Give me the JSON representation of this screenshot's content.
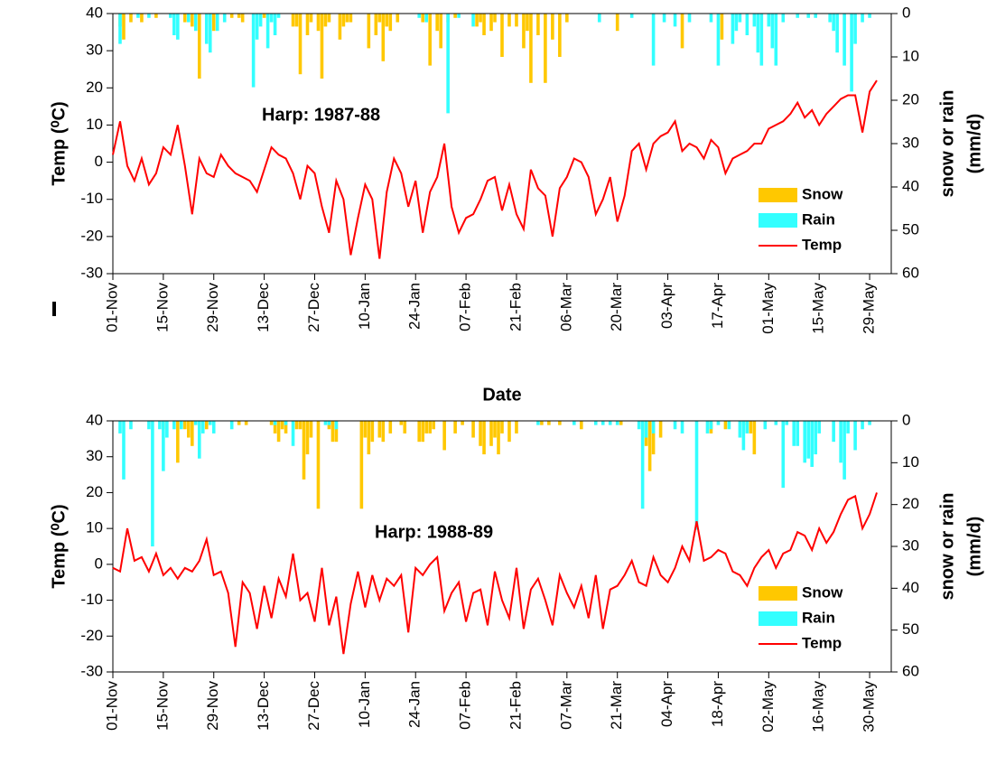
{
  "chart_data": [
    {
      "type": "combo",
      "annotation": "Harp: 1987-88",
      "xlabel": "Date",
      "ylabel": "Temp (⁰C)",
      "y2label": [
        "snow or rain",
        "(mm/d)"
      ],
      "xlim": [
        0,
        216
      ],
      "xticks": [
        {
          "value": 0,
          "label": "01-Nov"
        },
        {
          "value": 14,
          "label": "15-Nov"
        },
        {
          "value": 28,
          "label": "29-Nov"
        },
        {
          "value": 42,
          "label": "13-Dec"
        },
        {
          "value": 56,
          "label": "27-Dec"
        },
        {
          "value": 70,
          "label": "10-Jan"
        },
        {
          "value": 84,
          "label": "24-Jan"
        },
        {
          "value": 98,
          "label": "07-Feb"
        },
        {
          "value": 112,
          "label": "21-Feb"
        },
        {
          "value": 126,
          "label": "06-Mar"
        },
        {
          "value": 140,
          "label": "20-Mar"
        },
        {
          "value": 154,
          "label": "03-Apr"
        },
        {
          "value": 168,
          "label": "17-Apr"
        },
        {
          "value": 182,
          "label": "01-May"
        },
        {
          "value": 196,
          "label": "15-May"
        },
        {
          "value": 210,
          "label": "29-May"
        }
      ],
      "ylim": [
        -30,
        40
      ],
      "yticks": [
        -30,
        -20,
        -10,
        0,
        10,
        20,
        30,
        40
      ],
      "y2lim": [
        0,
        60
      ],
      "y2ticks": [
        0,
        10,
        20,
        30,
        40,
        50,
        60
      ],
      "y2_inverted": true,
      "legend": "lower right",
      "series": [
        {
          "name": "Snow",
          "type": "bar",
          "axis": "y2",
          "color": "#ffc800",
          "x": [
            2,
            3,
            5,
            8,
            12,
            20,
            22,
            24,
            27,
            28,
            33,
            35,
            36,
            42,
            50,
            51,
            52,
            54,
            55,
            57,
            58,
            59,
            60,
            63,
            64,
            65,
            66,
            71,
            73,
            74,
            75,
            76,
            77,
            79,
            86,
            88,
            90,
            91,
            93,
            95,
            101,
            102,
            103,
            105,
            106,
            108,
            110,
            112,
            114,
            115,
            116,
            118,
            120,
            122,
            124,
            126,
            140,
            158,
            169
          ],
          "values": [
            3,
            6,
            2,
            2,
            1,
            2,
            3,
            15,
            2,
            4,
            1,
            1,
            2,
            1,
            3,
            3,
            14,
            5,
            2,
            4,
            15,
            3,
            2,
            6,
            3,
            2,
            2,
            8,
            5,
            2,
            11,
            3,
            4,
            2,
            2,
            12,
            4,
            8,
            2,
            1,
            3,
            2,
            5,
            4,
            2,
            10,
            3,
            3,
            8,
            4,
            16,
            5,
            16,
            6,
            10,
            2,
            4,
            8,
            6
          ]
        },
        {
          "name": "Rain",
          "type": "bar",
          "axis": "y2",
          "color": "#33ffff",
          "x": [
            2,
            7,
            10,
            16,
            17,
            18,
            21,
            23,
            26,
            27,
            29,
            31,
            39,
            40,
            41,
            43,
            44,
            45,
            46,
            85,
            87,
            93,
            96,
            100,
            135,
            144,
            150,
            153,
            156,
            160,
            166,
            168,
            172,
            173,
            174,
            176,
            178,
            179,
            180,
            182,
            183,
            184,
            186,
            190,
            193,
            195,
            199,
            200,
            201,
            203,
            205,
            206,
            208,
            210
          ],
          "values": [
            7,
            1,
            1,
            1,
            5,
            6,
            2,
            4,
            7,
            9,
            4,
            2,
            17,
            6,
            3,
            8,
            2,
            5,
            1,
            1,
            2,
            23,
            1,
            3,
            2,
            1,
            12,
            2,
            3,
            2,
            2,
            12,
            7,
            4,
            2,
            5,
            3,
            9,
            12,
            3,
            8,
            12,
            2,
            1,
            1,
            1,
            2,
            4,
            9,
            12,
            18,
            7,
            2,
            1
          ]
        },
        {
          "name": "Temp",
          "type": "line",
          "axis": "y",
          "color": "#ff0000",
          "x": [
            0,
            2,
            4,
            6,
            8,
            10,
            12,
            14,
            16,
            18,
            20,
            22,
            24,
            26,
            28,
            30,
            32,
            34,
            36,
            38,
            40,
            42,
            44,
            46,
            48,
            50,
            52,
            54,
            56,
            58,
            60,
            62,
            64,
            66,
            68,
            70,
            72,
            74,
            76,
            78,
            80,
            82,
            84,
            86,
            88,
            90,
            92,
            94,
            96,
            98,
            100,
            102,
            104,
            106,
            108,
            110,
            112,
            114,
            116,
            118,
            120,
            122,
            124,
            126,
            128,
            130,
            132,
            134,
            136,
            138,
            140,
            142,
            144,
            146,
            148,
            150,
            152,
            154,
            156,
            158,
            160,
            162,
            164,
            166,
            168,
            170,
            172,
            174,
            176,
            178,
            180,
            182,
            184,
            186,
            188,
            190,
            192,
            194,
            196,
            198,
            200,
            202,
            204,
            206,
            208,
            210,
            212
          ],
          "values": [
            2,
            11,
            -1,
            -5,
            1,
            -6,
            -3,
            4,
            2,
            10,
            -1,
            -14,
            1,
            -3,
            -4,
            2,
            -1,
            -3,
            -4,
            -5,
            -8,
            -2,
            4,
            2,
            1,
            -3,
            -10,
            -1,
            -3,
            -12,
            -19,
            -5,
            -10,
            -25,
            -15,
            -6,
            -10,
            -26,
            -8,
            1,
            -3,
            -12,
            -5,
            -19,
            -8,
            -4,
            5,
            -12,
            -19,
            -15,
            -14,
            -10,
            -5,
            -4,
            -13,
            -6,
            -14,
            -18,
            -2,
            -7,
            -9,
            -20,
            -7,
            -4,
            1,
            0,
            -4,
            -14,
            -10,
            -4,
            -16,
            -9,
            3,
            5,
            -2,
            5,
            7,
            8,
            11,
            3,
            5,
            4,
            1,
            6,
            4,
            -3,
            1,
            2,
            3,
            5,
            5,
            9,
            10,
            11,
            13,
            16,
            12,
            14,
            10,
            13,
            15,
            17,
            18,
            18,
            8,
            19,
            22
          ]
        }
      ]
    },
    {
      "type": "combo",
      "annotation": "Harp: 1988-89",
      "xlabel": "Date",
      "ylabel": "Temp (⁰C)",
      "y2label": [
        "snow or rain",
        "(mm/d)"
      ],
      "xlim": [
        0,
        216
      ],
      "xticks": [
        {
          "value": 0,
          "label": "01-Nov"
        },
        {
          "value": 14,
          "label": "15-Nov"
        },
        {
          "value": 28,
          "label": "29-Nov"
        },
        {
          "value": 42,
          "label": "13-Dec"
        },
        {
          "value": 56,
          "label": "27-Dec"
        },
        {
          "value": 70,
          "label": "10-Jan"
        },
        {
          "value": 84,
          "label": "24-Jan"
        },
        {
          "value": 98,
          "label": "07-Feb"
        },
        {
          "value": 112,
          "label": "21-Feb"
        },
        {
          "value": 126,
          "label": "07-Mar"
        },
        {
          "value": 140,
          "label": "21-Mar"
        },
        {
          "value": 154,
          "label": "04-Apr"
        },
        {
          "value": 168,
          "label": "18-Apr"
        },
        {
          "value": 182,
          "label": "02-May"
        },
        {
          "value": 196,
          "label": "16-May"
        },
        {
          "value": 210,
          "label": "30-May"
        }
      ],
      "ylim": [
        -30,
        40
      ],
      "yticks": [
        -30,
        -20,
        -10,
        0,
        10,
        20,
        30,
        40
      ],
      "y2lim": [
        0,
        60
      ],
      "y2ticks": [
        0,
        10,
        20,
        30,
        40,
        50,
        60
      ],
      "y2_inverted": true,
      "legend": "lower right",
      "series": [
        {
          "name": "Snow",
          "type": "bar",
          "axis": "y2",
          "color": "#ffc800",
          "x": [
            14,
            18,
            20,
            21,
            22,
            24,
            26,
            35,
            37,
            44,
            45,
            46,
            47,
            48,
            51,
            52,
            53,
            54,
            55,
            57,
            60,
            61,
            62,
            69,
            70,
            71,
            72,
            74,
            75,
            77,
            80,
            81,
            85,
            86,
            87,
            88,
            89,
            92,
            95,
            97,
            100,
            102,
            103,
            105,
            106,
            107,
            108,
            110,
            112,
            119,
            121,
            124,
            130,
            141,
            148,
            149,
            150,
            152,
            166,
            170,
            175,
            177,
            178
          ],
          "values": [
            2,
            10,
            2,
            4,
            6,
            2,
            2,
            1,
            1,
            1,
            3,
            5,
            2,
            3,
            2,
            2,
            14,
            8,
            4,
            21,
            2,
            5,
            5,
            21,
            4,
            8,
            5,
            4,
            5,
            3,
            1,
            3,
            5,
            5,
            3,
            3,
            2,
            7,
            3,
            1,
            4,
            6,
            8,
            6,
            4,
            8,
            3,
            5,
            3,
            1,
            1,
            1,
            2,
            1,
            6,
            12,
            8,
            4,
            3,
            2,
            1,
            3,
            8
          ]
        },
        {
          "name": "Rain",
          "type": "bar",
          "axis": "y2",
          "color": "#33ffff",
          "x": [
            2,
            3,
            5,
            10,
            11,
            13,
            14,
            15,
            17,
            19,
            23,
            24,
            25,
            27,
            28,
            33,
            45,
            48,
            50,
            59,
            60,
            62,
            118,
            128,
            134,
            136,
            138,
            140,
            146,
            147,
            148,
            150,
            156,
            158,
            162,
            165,
            166,
            168,
            171,
            174,
            175,
            176,
            181,
            184,
            186,
            187,
            189,
            190,
            192,
            193,
            194,
            195,
            196,
            200,
            202,
            203,
            204,
            206,
            208,
            210
          ],
          "values": [
            3,
            14,
            2,
            2,
            30,
            2,
            12,
            4,
            2,
            2,
            1,
            9,
            3,
            1,
            3,
            2,
            1,
            1,
            6,
            1,
            1,
            2,
            1,
            1,
            1,
            1,
            1,
            1,
            2,
            21,
            4,
            3,
            2,
            3,
            26,
            3,
            2,
            1,
            2,
            4,
            7,
            3,
            2,
            1,
            16,
            1,
            6,
            6,
            10,
            9,
            11,
            8,
            3,
            5,
            10,
            14,
            3,
            7,
            2,
            1
          ]
        },
        {
          "name": "Temp",
          "type": "line",
          "axis": "y",
          "color": "#ff0000",
          "x": [
            0,
            2,
            4,
            6,
            8,
            10,
            12,
            14,
            16,
            18,
            20,
            22,
            24,
            26,
            28,
            30,
            32,
            34,
            36,
            38,
            40,
            42,
            44,
            46,
            48,
            50,
            52,
            54,
            56,
            58,
            60,
            62,
            64,
            66,
            68,
            70,
            72,
            74,
            76,
            78,
            80,
            82,
            84,
            86,
            88,
            90,
            92,
            94,
            96,
            98,
            100,
            102,
            104,
            106,
            108,
            110,
            112,
            114,
            116,
            118,
            120,
            122,
            124,
            126,
            128,
            130,
            132,
            134,
            136,
            138,
            140,
            142,
            144,
            146,
            148,
            150,
            152,
            154,
            156,
            158,
            160,
            162,
            164,
            166,
            168,
            170,
            172,
            174,
            176,
            178,
            180,
            182,
            184,
            186,
            188,
            190,
            192,
            194,
            196,
            198,
            200,
            202,
            204,
            206,
            208,
            210,
            212
          ],
          "values": [
            -1,
            -2,
            10,
            1,
            2,
            -2,
            3,
            -3,
            -1,
            -4,
            -1,
            -2,
            1,
            7,
            -3,
            -2,
            -8,
            -23,
            -5,
            -8,
            -18,
            -6,
            -15,
            -4,
            -9,
            3,
            -10,
            -8,
            -16,
            -1,
            -17,
            -9,
            -25,
            -11,
            -2,
            -12,
            -3,
            -10,
            -4,
            -6,
            -3,
            -19,
            -1,
            -3,
            0,
            2,
            -13,
            -8,
            -5,
            -16,
            -8,
            -7,
            -17,
            -2,
            -10,
            -15,
            -1,
            -18,
            -7,
            -4,
            -10,
            -17,
            -3,
            -8,
            -12,
            -6,
            -15,
            -3,
            -18,
            -7,
            -6,
            -3,
            1,
            -5,
            -6,
            2,
            -3,
            -5,
            -1,
            5,
            1,
            12,
            1,
            2,
            4,
            3,
            -2,
            -3,
            -6,
            -1,
            2,
            4,
            -1,
            3,
            4,
            9,
            8,
            4,
            10,
            6,
            9,
            14,
            18,
            19,
            10,
            14,
            20
          ]
        }
      ]
    }
  ]
}
